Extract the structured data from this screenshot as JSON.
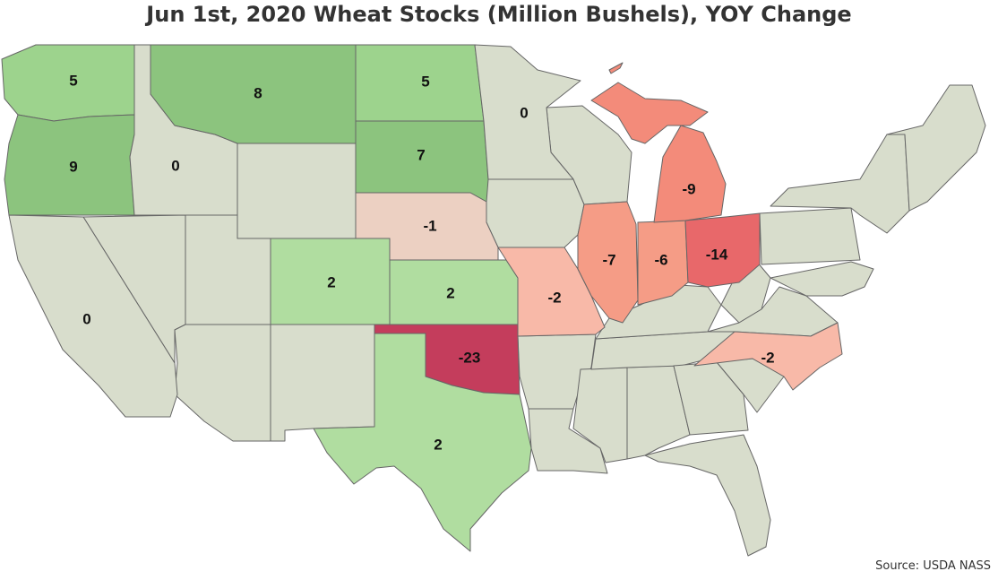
{
  "title": "Jun 1st, 2020 Wheat Stocks (Million Bushels), YOY Change",
  "source": "Source: USDA NASS",
  "colors": {
    "neutral": "#d8ddcc",
    "green_light": "#b0dda0",
    "green_mid": "#9dd38d",
    "green_dark": "#8cc47e",
    "red_light": "#f8b9a8",
    "red_pale": "#ecd0c2",
    "red_mid": "#f59c86",
    "red_strong": "#f38b7a",
    "red_darker": "#e8686a",
    "red_max": "#c43d5c"
  },
  "states": [
    {
      "name": "Washington",
      "value": "5"
    },
    {
      "name": "Oregon",
      "value": "9"
    },
    {
      "name": "Idaho",
      "value": "0"
    },
    {
      "name": "Montana",
      "value": "8"
    },
    {
      "name": "North Dakota",
      "value": "5"
    },
    {
      "name": "South Dakota",
      "value": "7"
    },
    {
      "name": "Minnesota",
      "value": "0"
    },
    {
      "name": "Nebraska",
      "value": "-1"
    },
    {
      "name": "California",
      "value": "0"
    },
    {
      "name": "Colorado",
      "value": "2"
    },
    {
      "name": "Kansas",
      "value": "2"
    },
    {
      "name": "Oklahoma",
      "value": "-23"
    },
    {
      "name": "Texas",
      "value": "2"
    },
    {
      "name": "Missouri",
      "value": "-2"
    },
    {
      "name": "Illinois",
      "value": "-7"
    },
    {
      "name": "Indiana",
      "value": "-6"
    },
    {
      "name": "Ohio",
      "value": "-14"
    },
    {
      "name": "Michigan",
      "value": "-9"
    },
    {
      "name": "North Carolina",
      "value": "-2"
    }
  ]
}
